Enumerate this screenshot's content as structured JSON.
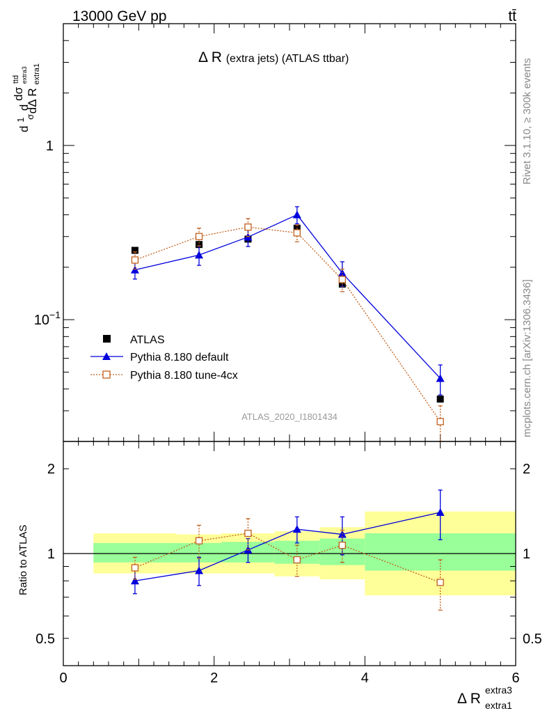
{
  "header": {
    "left": "13000 GeV pp",
    "right": "tt̄"
  },
  "side_labels": {
    "rivet": "Rivet 3.1.10, ≥ 300k events",
    "mcplots": "mcplots.cern.ch [arXiv:1306.3436]"
  },
  "analysis_id": "ATLAS_2020_I1801434",
  "main_title": {
    "prefix": "Δ R",
    "suffix": "(extra jets) (ATLAS ttbar)"
  },
  "y_label_main": {
    "a": "d",
    "b": "1",
    "c": "σ",
    "d": "d",
    "e": "dσ",
    "f": "ttd",
    "g": "dΔ R",
    "h": "extra1",
    "i": "extra3"
  },
  "y_label_ratio": "Ratio to ATLAS",
  "x_label": {
    "base": "Δ R",
    "sup": "extra3",
    "sub": "extra1"
  },
  "colors": {
    "data": "#000000",
    "default": "#0000dd",
    "tune": "#c15f1c",
    "band_inner": "#99ff99",
    "band_outer": "#ffff99"
  },
  "chart_data": [
    {
      "type": "scatter",
      "panel": "main",
      "y_scale": "log",
      "xlim": [
        0,
        6
      ],
      "ylim": [
        0.02,
        5.0
      ],
      "y_ticks": [
        {
          "value": 0.1,
          "base": "10",
          "exp": "−1"
        },
        {
          "value": 1,
          "base": "1",
          "exp": ""
        }
      ],
      "legend_position": "bottom-left",
      "series": [
        {
          "name": "ATLAS",
          "style": "data",
          "x": [
            0.95,
            1.8,
            2.45,
            3.1,
            3.7,
            5.0
          ],
          "y": [
            0.25,
            0.27,
            0.29,
            0.335,
            0.16,
            0.035
          ]
        },
        {
          "name": "Pythia 8.180 default",
          "style": "default",
          "x": [
            0.95,
            1.8,
            2.45,
            3.1,
            3.7,
            5.0
          ],
          "y": [
            0.193,
            0.235,
            0.298,
            0.4,
            0.185,
            0.046
          ],
          "err": [
            0.022,
            0.03,
            0.035,
            0.045,
            0.03,
            0.009
          ]
        },
        {
          "name": "Pythia 8.180 tune-4cx",
          "style": "tune",
          "x": [
            0.95,
            1.8,
            2.45,
            3.1,
            3.7,
            5.0
          ],
          "y": [
            0.22,
            0.3,
            0.34,
            0.315,
            0.17,
            0.026
          ],
          "err": [
            0.025,
            0.035,
            0.04,
            0.035,
            0.025,
            0.006
          ]
        }
      ]
    },
    {
      "type": "scatter",
      "panel": "ratio",
      "y_scale": "log",
      "xlim": [
        0,
        6
      ],
      "ylim": [
        0.4,
        2.5
      ],
      "y_ticks": [
        {
          "value": 0.5,
          "label": "0.5"
        },
        {
          "value": 1,
          "label": "1"
        },
        {
          "value": 2,
          "label": "2"
        }
      ],
      "x_ticks": [
        {
          "value": 0,
          "label": "0"
        },
        {
          "value": 2,
          "label": "2"
        },
        {
          "value": 4,
          "label": "4"
        },
        {
          "value": 6,
          "label": "6"
        }
      ],
      "bands": [
        {
          "x0": 0.4,
          "x1": 1.5,
          "inner": [
            0.93,
            1.09
          ],
          "outer": [
            0.85,
            1.18
          ]
        },
        {
          "x0": 1.5,
          "x1": 2.1,
          "inner": [
            0.93,
            1.09
          ],
          "outer": [
            0.85,
            1.17
          ]
        },
        {
          "x0": 2.1,
          "x1": 2.8,
          "inner": [
            0.93,
            1.1
          ],
          "outer": [
            0.85,
            1.18
          ]
        },
        {
          "x0": 2.8,
          "x1": 3.4,
          "inner": [
            0.92,
            1.11
          ],
          "outer": [
            0.83,
            1.2
          ]
        },
        {
          "x0": 3.4,
          "x1": 4.0,
          "inner": [
            0.91,
            1.13
          ],
          "outer": [
            0.81,
            1.24
          ]
        },
        {
          "x0": 4.0,
          "x1": 6.0,
          "inner": [
            0.87,
            1.18
          ],
          "outer": [
            0.71,
            1.41
          ]
        }
      ],
      "series": [
        {
          "name": "Pythia 8.180 default",
          "style": "default",
          "x": [
            0.95,
            1.8,
            2.45,
            3.1,
            3.7,
            5.0
          ],
          "y": [
            0.8,
            0.87,
            1.03,
            1.22,
            1.17,
            1.4
          ],
          "err": [
            0.08,
            0.1,
            0.1,
            0.13,
            0.18,
            0.28
          ]
        },
        {
          "name": "Pythia 8.180 tune-4cx",
          "style": "tune",
          "x": [
            0.95,
            1.8,
            2.45,
            3.1,
            3.7,
            5.0
          ],
          "y": [
            0.89,
            1.11,
            1.18,
            0.95,
            1.07,
            0.79
          ],
          "err": [
            0.08,
            0.15,
            0.15,
            0.12,
            0.14,
            0.16
          ]
        }
      ]
    }
  ]
}
